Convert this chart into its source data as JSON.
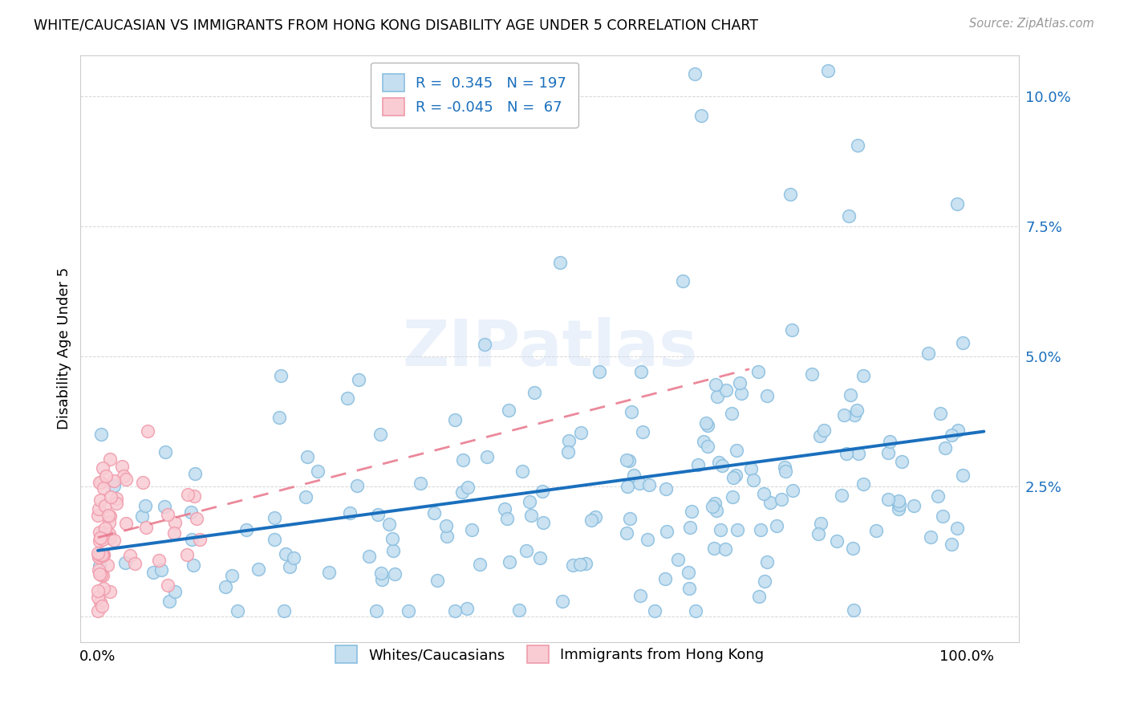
{
  "title": "WHITE/CAUCASIAN VS IMMIGRANTS FROM HONG KONG DISABILITY AGE UNDER 5 CORRELATION CHART",
  "source": "Source: ZipAtlas.com",
  "ylabel": "Disability Age Under 5",
  "blue_R": 0.345,
  "blue_N": 197,
  "pink_R": -0.045,
  "pink_N": 67,
  "blue_color": "#8bbfe0",
  "blue_fill": "#c5dff0",
  "pink_color": "#f09aaa",
  "pink_fill": "#f9ccd4",
  "blue_line_color": "#1a6fbd",
  "pink_line_color": "#e8748a",
  "legend_label_blue": "Whites/Caucasians",
  "legend_label_pink": "Immigrants from Hong Kong",
  "watermark": "ZIPatlas",
  "xlim": [
    -0.02,
    1.06
  ],
  "ylim": [
    -0.005,
    0.108
  ],
  "yticks": [
    0.0,
    0.025,
    0.05,
    0.075,
    0.1
  ],
  "ytick_labels": [
    "",
    "2.5%",
    "5.0%",
    "7.5%",
    "10.0%"
  ],
  "blue_seed": 12,
  "pink_seed": 99
}
